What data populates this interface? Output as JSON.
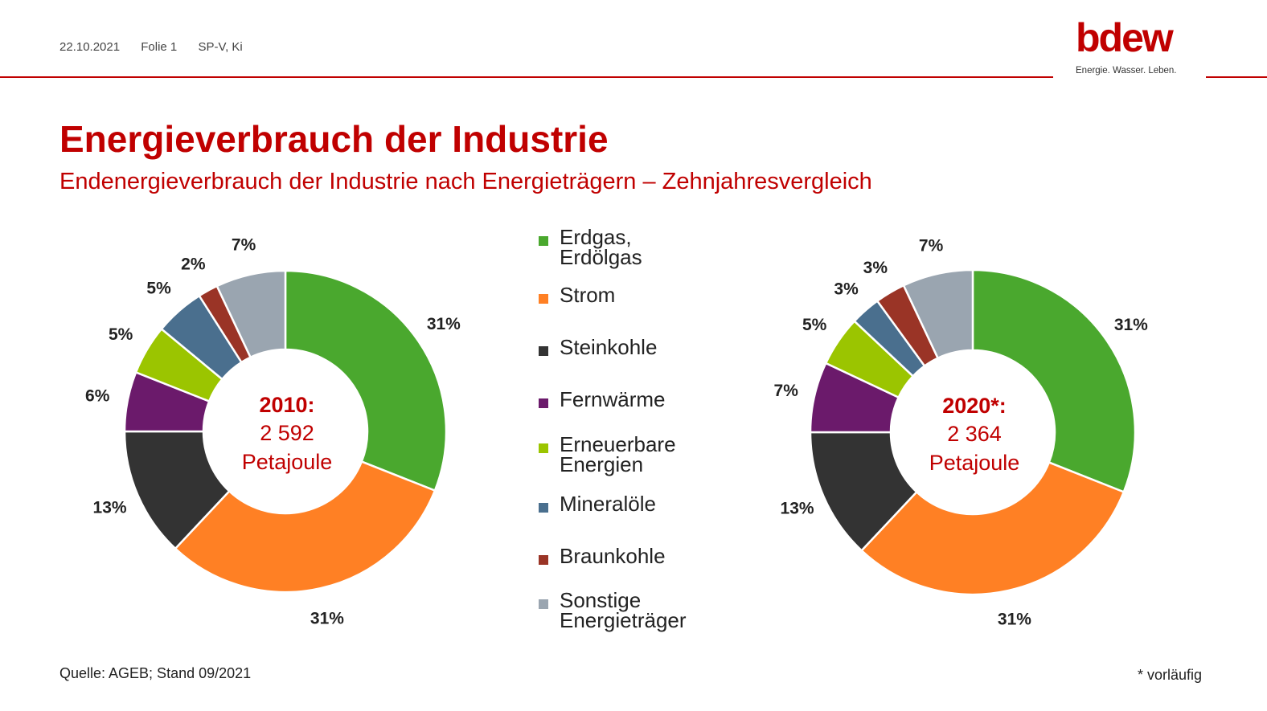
{
  "header": {
    "date": "22.10.2021",
    "slide": "Folie 1",
    "author": "SP-V, Ki",
    "logo_word": "bdew",
    "logo_tagline": "Energie. Wasser. Leben."
  },
  "title": "Energieverbrauch der Industrie",
  "subtitle": "Endenergieverbrauch der Industrie nach Energieträgern – Zehnjahresvergleich",
  "footer": {
    "source": "Quelle: AGEB; Stand 09/2021",
    "footnote": "* vorläufig"
  },
  "colors": {
    "brand": "#c00000",
    "erdgas": "#4aa82e",
    "strom": "#ff8024",
    "steinkohle": "#333333",
    "fernwaerme": "#6b1a6b",
    "erneuerbare": "#9bc500",
    "mineraloele": "#4a6f8e",
    "braunkohle": "#9a3426",
    "sonstige": "#9aa5b0"
  },
  "chart_data": [
    {
      "type": "pie",
      "variant": "donut",
      "center_label": [
        "2010:",
        "2 592",
        "Petajoule"
      ],
      "categories": [
        "Erdgas, Erdölgas",
        "Strom",
        "Steinkohle",
        "Fernwärme",
        "Erneuerbare Energien",
        "Mineralöle",
        "Braunkohle",
        "Sonstige Energieträger"
      ],
      "values": [
        31,
        31,
        13,
        6,
        5,
        5,
        2,
        7
      ],
      "value_labels": [
        "31%",
        "31%",
        "13%",
        "6%",
        "5%",
        "5%",
        "2%",
        "7%"
      ]
    },
    {
      "type": "pie",
      "variant": "donut",
      "center_label": [
        "2020*:",
        "2 364",
        "Petajoule"
      ],
      "categories": [
        "Erdgas, Erdölgas",
        "Strom",
        "Steinkohle",
        "Fernwärme",
        "Erneuerbare Energien",
        "Mineralöle",
        "Braunkohle",
        "Sonstige Energieträger"
      ],
      "values": [
        31,
        31,
        13,
        7,
        5,
        3,
        3,
        7
      ],
      "value_labels": [
        "31%",
        "31%",
        "13%",
        "7%",
        "5%",
        "3%",
        "3%",
        "7%"
      ]
    }
  ],
  "legend": [
    {
      "label": "Erdgas,\nErdölgas",
      "color_key": "erdgas"
    },
    {
      "label": "Strom",
      "color_key": "strom"
    },
    {
      "label": "Steinkohle",
      "color_key": "steinkohle"
    },
    {
      "label": "Fernwärme",
      "color_key": "fernwaerme"
    },
    {
      "label": "Erneuerbare\nEnergien",
      "color_key": "erneuerbare"
    },
    {
      "label": "Mineralöle",
      "color_key": "mineraloele"
    },
    {
      "label": "Braunkohle",
      "color_key": "braunkohle"
    },
    {
      "label": "Sonstige\nEnergieträger",
      "color_key": "sonstige"
    }
  ]
}
